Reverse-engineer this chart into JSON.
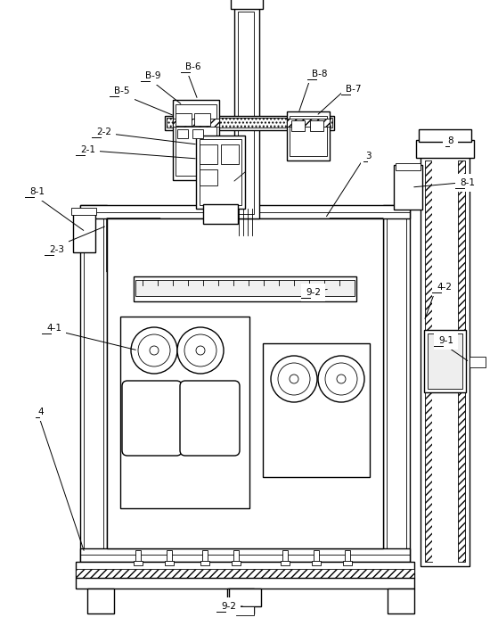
{
  "bg_color": "#ffffff",
  "fig_width": 5.5,
  "fig_height": 7.11,
  "dpi": 100,
  "lw_main": 1.0,
  "lw_thin": 0.6,
  "lw_thick": 1.5,
  "label_fs": 7.5
}
